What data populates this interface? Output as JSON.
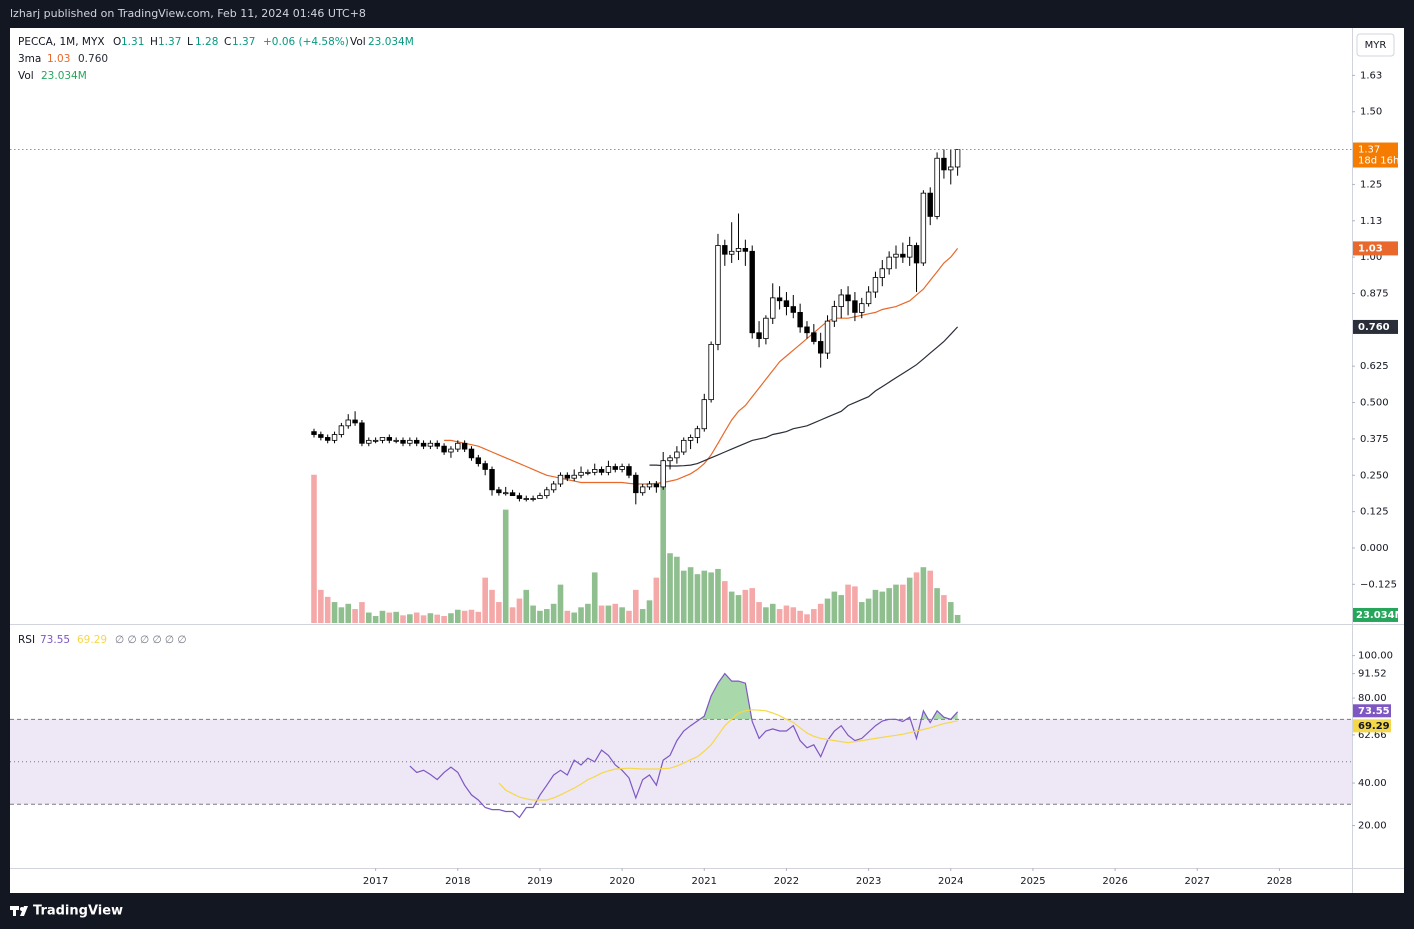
{
  "header": "lzharj published on TradingView.com, Feb 11, 2024 01:46 UTC+8",
  "footer": "TradingView",
  "currency": "MYR",
  "chart_data": [
    {
      "type": "candlestick",
      "symbol": "PECCA, 1M, MYX",
      "legend_keys": [
        "O",
        "H",
        "L",
        "C"
      ],
      "change": "+0.06 (+4.58%)",
      "vol_key": "Vol",
      "ma_name": "3ma",
      "countdown": "18d 16h",
      "up_color": "#ffffff",
      "down_color": "#000000",
      "open": [
        0.4,
        0.39,
        0.38,
        0.37,
        0.39,
        0.42,
        0.44,
        0.43,
        0.36,
        0.37,
        0.37,
        0.38,
        0.37,
        0.37,
        0.36,
        0.37,
        0.36,
        0.35,
        0.36,
        0.35,
        0.33,
        0.34,
        0.36,
        0.34,
        0.31,
        0.29,
        0.27,
        0.2,
        0.19,
        0.19,
        0.18,
        0.17,
        0.17,
        0.17,
        0.18,
        0.2,
        0.22,
        0.25,
        0.24,
        0.25,
        0.26,
        0.26,
        0.27,
        0.26,
        0.28,
        0.27,
        0.28,
        0.25,
        0.19,
        0.21,
        0.22,
        0.21,
        0.3,
        0.31,
        0.33,
        0.37,
        0.38,
        0.41,
        0.51,
        0.7,
        1.04,
        1.01,
        1.02,
        1.03,
        1.02,
        0.74,
        0.72,
        0.79,
        0.86,
        0.85,
        0.83,
        0.81,
        0.76,
        0.74,
        0.71,
        0.67,
        0.78,
        0.83,
        0.87,
        0.85,
        0.81,
        0.84,
        0.88,
        0.93,
        0.96,
        1.0,
        1.01,
        1.0,
        1.04,
        0.98,
        1.22,
        1.14,
        1.34,
        1.3,
        1.31
      ],
      "high": [
        0.41,
        0.4,
        0.39,
        0.4,
        0.43,
        0.46,
        0.47,
        0.44,
        0.38,
        0.38,
        0.38,
        0.39,
        0.38,
        0.38,
        0.38,
        0.38,
        0.37,
        0.37,
        0.37,
        0.36,
        0.35,
        0.37,
        0.37,
        0.35,
        0.32,
        0.3,
        0.28,
        0.21,
        0.21,
        0.2,
        0.19,
        0.18,
        0.18,
        0.19,
        0.21,
        0.23,
        0.26,
        0.26,
        0.27,
        0.28,
        0.27,
        0.29,
        0.28,
        0.3,
        0.29,
        0.29,
        0.29,
        0.26,
        0.22,
        0.23,
        0.23,
        0.33,
        0.32,
        0.35,
        0.38,
        0.39,
        0.42,
        0.53,
        0.71,
        1.08,
        1.06,
        1.12,
        1.15,
        1.06,
        1.04,
        0.78,
        0.8,
        0.91,
        0.9,
        0.88,
        0.87,
        0.84,
        0.78,
        0.77,
        0.74,
        0.8,
        0.85,
        0.89,
        0.9,
        0.88,
        0.86,
        0.9,
        0.95,
        0.99,
        1.02,
        1.04,
        1.05,
        1.07,
        1.05,
        1.23,
        1.24,
        1.36,
        1.37,
        1.37,
        1.37
      ],
      "low": [
        0.38,
        0.37,
        0.36,
        0.36,
        0.38,
        0.41,
        0.42,
        0.35,
        0.35,
        0.36,
        0.36,
        0.36,
        0.36,
        0.35,
        0.35,
        0.35,
        0.34,
        0.34,
        0.34,
        0.32,
        0.31,
        0.33,
        0.33,
        0.3,
        0.28,
        0.25,
        0.18,
        0.18,
        0.18,
        0.18,
        0.16,
        0.16,
        0.16,
        0.17,
        0.17,
        0.19,
        0.21,
        0.23,
        0.23,
        0.24,
        0.25,
        0.25,
        0.25,
        0.25,
        0.26,
        0.26,
        0.24,
        0.15,
        0.18,
        0.2,
        0.19,
        0.2,
        0.27,
        0.29,
        0.32,
        0.34,
        0.36,
        0.4,
        0.5,
        0.68,
        0.97,
        0.98,
        0.99,
        0.97,
        0.72,
        0.69,
        0.7,
        0.77,
        0.82,
        0.8,
        0.79,
        0.74,
        0.72,
        0.7,
        0.62,
        0.65,
        0.76,
        0.79,
        0.8,
        0.78,
        0.79,
        0.83,
        0.86,
        0.9,
        0.94,
        0.96,
        0.98,
        0.97,
        0.88,
        0.97,
        1.11,
        1.13,
        1.27,
        1.25,
        1.28
      ],
      "close": [
        0.39,
        0.38,
        0.37,
        0.39,
        0.42,
        0.44,
        0.43,
        0.36,
        0.37,
        0.37,
        0.38,
        0.37,
        0.37,
        0.36,
        0.37,
        0.36,
        0.35,
        0.36,
        0.35,
        0.33,
        0.34,
        0.36,
        0.34,
        0.31,
        0.29,
        0.27,
        0.2,
        0.19,
        0.19,
        0.18,
        0.17,
        0.17,
        0.17,
        0.18,
        0.2,
        0.22,
        0.25,
        0.24,
        0.25,
        0.26,
        0.26,
        0.27,
        0.26,
        0.28,
        0.27,
        0.28,
        0.25,
        0.19,
        0.21,
        0.22,
        0.21,
        0.3,
        0.31,
        0.33,
        0.37,
        0.38,
        0.41,
        0.51,
        0.7,
        1.04,
        1.01,
        1.02,
        1.03,
        1.02,
        0.74,
        0.72,
        0.79,
        0.86,
        0.85,
        0.83,
        0.81,
        0.76,
        0.74,
        0.71,
        0.67,
        0.78,
        0.83,
        0.87,
        0.85,
        0.81,
        0.84,
        0.88,
        0.93,
        0.96,
        1.0,
        1.01,
        1.0,
        1.04,
        0.98,
        1.22,
        1.14,
        1.34,
        1.3,
        1.31,
        1.37
      ],
      "volume": [
        425,
        95,
        75,
        60,
        45,
        55,
        40,
        60,
        30,
        20,
        35,
        30,
        32,
        22,
        25,
        30,
        22,
        28,
        24,
        20,
        28,
        38,
        35,
        38,
        32,
        130,
        95,
        60,
        325,
        45,
        70,
        95,
        50,
        35,
        40,
        55,
        110,
        35,
        30,
        45,
        55,
        145,
        50,
        50,
        55,
        45,
        35,
        95,
        40,
        65,
        130,
        420,
        200,
        190,
        150,
        160,
        140,
        150,
        145,
        155,
        120,
        90,
        80,
        95,
        100,
        60,
        45,
        55,
        40,
        50,
        45,
        35,
        25,
        40,
        55,
        70,
        90,
        80,
        110,
        105,
        60,
        70,
        95,
        90,
        100,
        110,
        110,
        130,
        145,
        160,
        150,
        100,
        80,
        60,
        23.034
      ],
      "volume_label": "23.034M",
      "volume_up_color": "#8fbf8e",
      "volume_down_color": "#f5a8a8",
      "volume_lim": [
        0,
        1700
      ],
      "series": [
        {
          "name": "1.03",
          "color": "#e8692b",
          "values": [
            null,
            null,
            null,
            null,
            null,
            null,
            null,
            null,
            null,
            null,
            null,
            null,
            null,
            null,
            null,
            null,
            null,
            null,
            null,
            0.37,
            0.37,
            0.365,
            0.36,
            0.355,
            0.35,
            0.34,
            0.33,
            0.32,
            0.31,
            0.3,
            0.29,
            0.28,
            0.27,
            0.26,
            0.25,
            0.245,
            0.24,
            0.235,
            0.23,
            0.225,
            0.225,
            0.225,
            0.225,
            0.225,
            0.225,
            0.225,
            0.222,
            0.22,
            0.22,
            0.22,
            0.222,
            0.225,
            0.23,
            0.235,
            0.245,
            0.255,
            0.27,
            0.29,
            0.32,
            0.36,
            0.4,
            0.44,
            0.47,
            0.49,
            0.52,
            0.55,
            0.58,
            0.61,
            0.64,
            0.66,
            0.68,
            0.7,
            0.72,
            0.74,
            0.76,
            0.78,
            0.79,
            0.79,
            0.79,
            0.795,
            0.8,
            0.805,
            0.81,
            0.82,
            0.825,
            0.83,
            0.84,
            0.85,
            0.87,
            0.89,
            0.92,
            0.95,
            0.98,
            1.0,
            1.03
          ]
        },
        {
          "name": "0.760",
          "color": "#2a2e39",
          "values": [
            null,
            null,
            null,
            null,
            null,
            null,
            null,
            null,
            null,
            null,
            null,
            null,
            null,
            null,
            null,
            null,
            null,
            null,
            null,
            null,
            null,
            null,
            null,
            null,
            null,
            null,
            null,
            null,
            null,
            null,
            null,
            null,
            null,
            null,
            null,
            null,
            null,
            null,
            null,
            null,
            null,
            null,
            null,
            null,
            null,
            null,
            null,
            null,
            null,
            0.285,
            0.285,
            0.283,
            0.282,
            0.282,
            0.283,
            0.285,
            0.29,
            0.3,
            0.31,
            0.32,
            0.33,
            0.34,
            0.35,
            0.36,
            0.37,
            0.375,
            0.38,
            0.39,
            0.395,
            0.4,
            0.41,
            0.415,
            0.42,
            0.43,
            0.44,
            0.45,
            0.46,
            0.47,
            0.49,
            0.5,
            0.51,
            0.52,
            0.54,
            0.555,
            0.57,
            0.585,
            0.6,
            0.615,
            0.63,
            0.65,
            0.67,
            0.69,
            0.71,
            0.735,
            0.76
          ]
        }
      ],
      "ylim": [
        -0.258,
        1.781
      ],
      "yticks": [
        {
          "value": 1.625,
          "label": "1.63"
        },
        {
          "value": 1.5,
          "label": "1.50"
        },
        {
          "value": 1.25,
          "label": "1.25"
        },
        {
          "value": 1.125,
          "label": "1.13"
        },
        {
          "value": 1,
          "label": "1.00"
        },
        {
          "value": 0.875,
          "label": "0.875"
        },
        {
          "value": 0.625,
          "label": "0.625"
        },
        {
          "value": 0.5,
          "label": "0.500"
        },
        {
          "value": 0.375,
          "label": "0.375"
        },
        {
          "value": 0.25,
          "label": "0.250"
        },
        {
          "value": 0.125,
          "label": "0.125"
        },
        {
          "value": 0,
          "label": "0.000"
        },
        {
          "value": -0.125,
          "label": "−0.125"
        }
      ],
      "xlim": [
        -44.4,
        151.6
      ],
      "xticks": [
        {
          "value": 9,
          "label": "2017"
        },
        {
          "value": 21,
          "label": "2018"
        },
        {
          "value": 33,
          "label": "2019"
        },
        {
          "value": 45,
          "label": "2020"
        },
        {
          "value": 57,
          "label": "2021"
        },
        {
          "value": 69,
          "label": "2022"
        },
        {
          "value": 81,
          "label": "2023"
        },
        {
          "value": 93,
          "label": "2024"
        },
        {
          "value": 105,
          "label": "2025"
        },
        {
          "value": 117,
          "label": "2026"
        },
        {
          "value": 129,
          "label": "2027"
        },
        {
          "value": 141,
          "label": "2028"
        }
      ]
    },
    {
      "type": "line",
      "name": "RSI",
      "empty_values": "∅ ∅ ∅ ∅ ∅ ∅",
      "band_color": "#ede7f6",
      "overbought_color": "#6fbf73",
      "bands": [
        70,
        50,
        30
      ],
      "series": [
        {
          "name": "73.55",
          "color": "#7e57c2",
          "values": [
            null,
            null,
            null,
            null,
            null,
            null,
            null,
            null,
            null,
            null,
            null,
            null,
            null,
            null,
            48,
            45,
            46,
            44,
            41.6,
            45,
            47.5,
            45,
            39,
            34.4,
            32,
            28.5,
            27.5,
            27.5,
            26.6,
            26.6,
            23.8,
            28.5,
            28.5,
            34.4,
            39,
            43.8,
            46,
            43.8,
            50.8,
            48.5,
            51.7,
            50,
            55.5,
            53,
            48.5,
            46,
            42.4,
            33,
            41.6,
            43.8,
            39,
            50.8,
            53,
            60,
            64.5,
            67,
            69.2,
            71.5,
            81,
            87,
            91.52,
            88,
            88,
            87,
            69,
            61,
            64.5,
            65.5,
            64.5,
            64.5,
            67,
            60,
            56.6,
            58,
            52.4,
            60,
            64.5,
            67,
            62.5,
            60,
            61,
            64,
            67,
            69.2,
            70,
            70,
            69,
            71,
            61,
            74,
            68.5,
            74,
            71,
            70,
            73.55
          ]
        },
        {
          "name": "69.29",
          "color": "#f5d84a",
          "values": [
            null,
            null,
            null,
            null,
            null,
            null,
            null,
            null,
            null,
            null,
            null,
            null,
            null,
            null,
            null,
            null,
            null,
            null,
            null,
            null,
            null,
            null,
            null,
            null,
            null,
            null,
            null,
            40,
            36.7,
            35,
            33.4,
            32.6,
            32,
            32,
            32,
            33,
            34.4,
            36,
            37.6,
            39.5,
            41.6,
            43,
            44.7,
            45.7,
            46.6,
            46.8,
            47,
            46.8,
            46.6,
            46.6,
            46.6,
            46.8,
            47,
            48,
            49.4,
            51,
            52.4,
            55,
            58,
            62.5,
            67,
            70,
            73,
            74,
            74.5,
            74.3,
            74,
            73,
            71.7,
            70,
            68.5,
            66,
            63.5,
            62,
            61,
            60.5,
            60,
            59.5,
            59,
            59.5,
            60,
            60.5,
            61,
            61.5,
            62,
            62.5,
            63,
            63.7,
            64.5,
            65.2,
            66,
            67,
            68,
            68.6,
            69.29
          ]
        }
      ],
      "ylim": [
        0,
        113
      ],
      "yticks": [
        {
          "value": 100,
          "label": "100.00"
        },
        {
          "value": 91.52,
          "label": "91.52"
        },
        {
          "value": 80,
          "label": "80.00"
        },
        {
          "value": 62.66,
          "label": "62.66"
        },
        {
          "value": 40,
          "label": "40.00"
        },
        {
          "value": 20,
          "label": "20.00"
        }
      ]
    }
  ]
}
